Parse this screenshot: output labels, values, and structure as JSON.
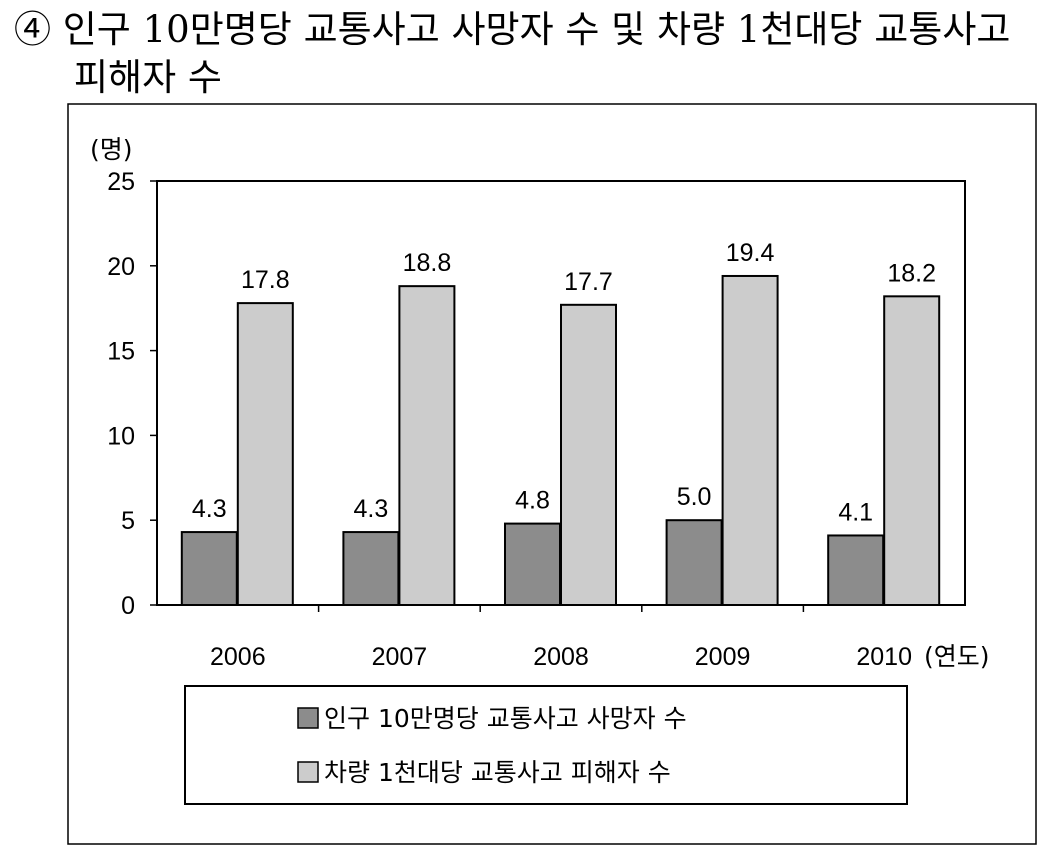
{
  "title": {
    "marker": "④",
    "line1": "인구 10만명당 교통사고 사망자 수 및 차량 1천대당 교통사고",
    "line2": "피해자 수"
  },
  "chart_data": {
    "type": "bar",
    "y_unit": "(명)",
    "x_unit": "(연도)",
    "categories": [
      "2006",
      "2007",
      "2008",
      "2009",
      "2010"
    ],
    "ylim": [
      0,
      25
    ],
    "yticks": [
      0,
      5,
      10,
      15,
      20,
      25
    ],
    "grid": false,
    "legend_position": "bottom",
    "series": [
      {
        "name": "인구 10만명당 교통사고 사망자 수",
        "values": [
          4.3,
          4.3,
          4.8,
          5.0,
          4.1
        ],
        "color": "#8c8c8c"
      },
      {
        "name": "차량 1천대당 교통사고 피해자 수",
        "values": [
          17.8,
          18.8,
          17.7,
          19.4,
          18.2
        ],
        "color": "#cccccc"
      }
    ]
  }
}
